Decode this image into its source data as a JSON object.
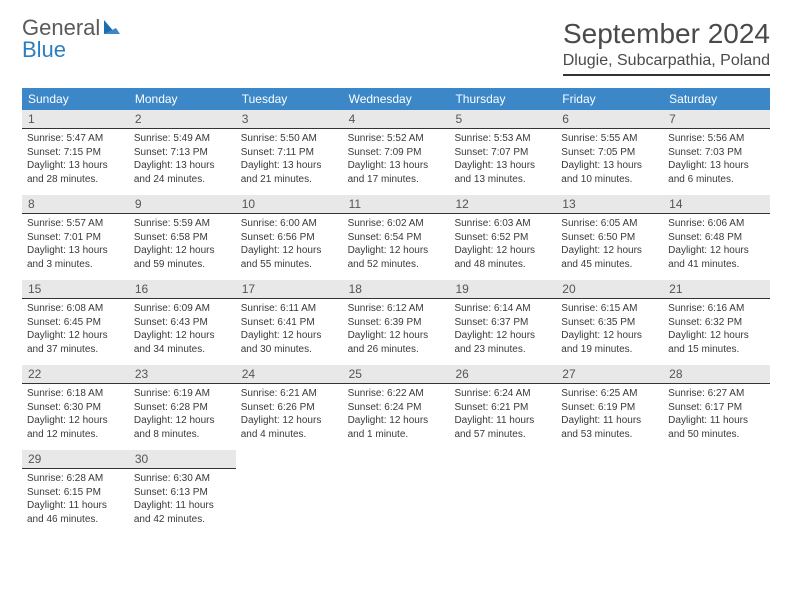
{
  "brand": {
    "name1": "General",
    "name2": "Blue"
  },
  "title": "September 2024",
  "location": "Dlugie, Subcarpathia, Poland",
  "colors": {
    "header_bg": "#3b87c8",
    "daynum_bg": "#e8e8e8",
    "daynum_border": "#333333",
    "text": "#333333",
    "brand_gray": "#5a5a5a",
    "brand_blue": "#2c7fbf"
  },
  "daysOfWeek": [
    "Sunday",
    "Monday",
    "Tuesday",
    "Wednesday",
    "Thursday",
    "Friday",
    "Saturday"
  ],
  "weeks": [
    [
      {
        "n": "1",
        "sunrise": "Sunrise: 5:47 AM",
        "sunset": "Sunset: 7:15 PM",
        "daylight": "Daylight: 13 hours and 28 minutes."
      },
      {
        "n": "2",
        "sunrise": "Sunrise: 5:49 AM",
        "sunset": "Sunset: 7:13 PM",
        "daylight": "Daylight: 13 hours and 24 minutes."
      },
      {
        "n": "3",
        "sunrise": "Sunrise: 5:50 AM",
        "sunset": "Sunset: 7:11 PM",
        "daylight": "Daylight: 13 hours and 21 minutes."
      },
      {
        "n": "4",
        "sunrise": "Sunrise: 5:52 AM",
        "sunset": "Sunset: 7:09 PM",
        "daylight": "Daylight: 13 hours and 17 minutes."
      },
      {
        "n": "5",
        "sunrise": "Sunrise: 5:53 AM",
        "sunset": "Sunset: 7:07 PM",
        "daylight": "Daylight: 13 hours and 13 minutes."
      },
      {
        "n": "6",
        "sunrise": "Sunrise: 5:55 AM",
        "sunset": "Sunset: 7:05 PM",
        "daylight": "Daylight: 13 hours and 10 minutes."
      },
      {
        "n": "7",
        "sunrise": "Sunrise: 5:56 AM",
        "sunset": "Sunset: 7:03 PM",
        "daylight": "Daylight: 13 hours and 6 minutes."
      }
    ],
    [
      {
        "n": "8",
        "sunrise": "Sunrise: 5:57 AM",
        "sunset": "Sunset: 7:01 PM",
        "daylight": "Daylight: 13 hours and 3 minutes."
      },
      {
        "n": "9",
        "sunrise": "Sunrise: 5:59 AM",
        "sunset": "Sunset: 6:58 PM",
        "daylight": "Daylight: 12 hours and 59 minutes."
      },
      {
        "n": "10",
        "sunrise": "Sunrise: 6:00 AM",
        "sunset": "Sunset: 6:56 PM",
        "daylight": "Daylight: 12 hours and 55 minutes."
      },
      {
        "n": "11",
        "sunrise": "Sunrise: 6:02 AM",
        "sunset": "Sunset: 6:54 PM",
        "daylight": "Daylight: 12 hours and 52 minutes."
      },
      {
        "n": "12",
        "sunrise": "Sunrise: 6:03 AM",
        "sunset": "Sunset: 6:52 PM",
        "daylight": "Daylight: 12 hours and 48 minutes."
      },
      {
        "n": "13",
        "sunrise": "Sunrise: 6:05 AM",
        "sunset": "Sunset: 6:50 PM",
        "daylight": "Daylight: 12 hours and 45 minutes."
      },
      {
        "n": "14",
        "sunrise": "Sunrise: 6:06 AM",
        "sunset": "Sunset: 6:48 PM",
        "daylight": "Daylight: 12 hours and 41 minutes."
      }
    ],
    [
      {
        "n": "15",
        "sunrise": "Sunrise: 6:08 AM",
        "sunset": "Sunset: 6:45 PM",
        "daylight": "Daylight: 12 hours and 37 minutes."
      },
      {
        "n": "16",
        "sunrise": "Sunrise: 6:09 AM",
        "sunset": "Sunset: 6:43 PM",
        "daylight": "Daylight: 12 hours and 34 minutes."
      },
      {
        "n": "17",
        "sunrise": "Sunrise: 6:11 AM",
        "sunset": "Sunset: 6:41 PM",
        "daylight": "Daylight: 12 hours and 30 minutes."
      },
      {
        "n": "18",
        "sunrise": "Sunrise: 6:12 AM",
        "sunset": "Sunset: 6:39 PM",
        "daylight": "Daylight: 12 hours and 26 minutes."
      },
      {
        "n": "19",
        "sunrise": "Sunrise: 6:14 AM",
        "sunset": "Sunset: 6:37 PM",
        "daylight": "Daylight: 12 hours and 23 minutes."
      },
      {
        "n": "20",
        "sunrise": "Sunrise: 6:15 AM",
        "sunset": "Sunset: 6:35 PM",
        "daylight": "Daylight: 12 hours and 19 minutes."
      },
      {
        "n": "21",
        "sunrise": "Sunrise: 6:16 AM",
        "sunset": "Sunset: 6:32 PM",
        "daylight": "Daylight: 12 hours and 15 minutes."
      }
    ],
    [
      {
        "n": "22",
        "sunrise": "Sunrise: 6:18 AM",
        "sunset": "Sunset: 6:30 PM",
        "daylight": "Daylight: 12 hours and 12 minutes."
      },
      {
        "n": "23",
        "sunrise": "Sunrise: 6:19 AM",
        "sunset": "Sunset: 6:28 PM",
        "daylight": "Daylight: 12 hours and 8 minutes."
      },
      {
        "n": "24",
        "sunrise": "Sunrise: 6:21 AM",
        "sunset": "Sunset: 6:26 PM",
        "daylight": "Daylight: 12 hours and 4 minutes."
      },
      {
        "n": "25",
        "sunrise": "Sunrise: 6:22 AM",
        "sunset": "Sunset: 6:24 PM",
        "daylight": "Daylight: 12 hours and 1 minute."
      },
      {
        "n": "26",
        "sunrise": "Sunrise: 6:24 AM",
        "sunset": "Sunset: 6:21 PM",
        "daylight": "Daylight: 11 hours and 57 minutes."
      },
      {
        "n": "27",
        "sunrise": "Sunrise: 6:25 AM",
        "sunset": "Sunset: 6:19 PM",
        "daylight": "Daylight: 11 hours and 53 minutes."
      },
      {
        "n": "28",
        "sunrise": "Sunrise: 6:27 AM",
        "sunset": "Sunset: 6:17 PM",
        "daylight": "Daylight: 11 hours and 50 minutes."
      }
    ],
    [
      {
        "n": "29",
        "sunrise": "Sunrise: 6:28 AM",
        "sunset": "Sunset: 6:15 PM",
        "daylight": "Daylight: 11 hours and 46 minutes."
      },
      {
        "n": "30",
        "sunrise": "Sunrise: 6:30 AM",
        "sunset": "Sunset: 6:13 PM",
        "daylight": "Daylight: 11 hours and 42 minutes."
      },
      {
        "empty": true
      },
      {
        "empty": true
      },
      {
        "empty": true
      },
      {
        "empty": true
      },
      {
        "empty": true
      }
    ]
  ]
}
